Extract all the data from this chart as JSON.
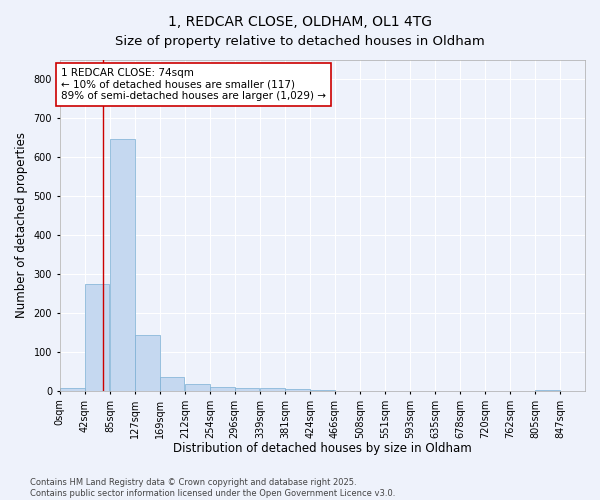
{
  "title_line1": "1, REDCAR CLOSE, OLDHAM, OL1 4TG",
  "title_line2": "Size of property relative to detached houses in Oldham",
  "xlabel": "Distribution of detached houses by size in Oldham",
  "ylabel": "Number of detached properties",
  "bar_color": "#c5d8f0",
  "bar_edge_color": "#7bafd4",
  "vline_value": 74,
  "vline_color": "#cc0000",
  "categories": [
    "0sqm",
    "42sqm",
    "85sqm",
    "127sqm",
    "169sqm",
    "212sqm",
    "254sqm",
    "296sqm",
    "339sqm",
    "381sqm",
    "424sqm",
    "466sqm",
    "508sqm",
    "551sqm",
    "593sqm",
    "635sqm",
    "678sqm",
    "720sqm",
    "762sqm",
    "805sqm",
    "847sqm"
  ],
  "bin_edges": [
    0,
    42,
    85,
    127,
    169,
    212,
    254,
    296,
    339,
    381,
    424,
    466,
    508,
    551,
    593,
    635,
    678,
    720,
    762,
    805,
    847,
    889
  ],
  "values": [
    7,
    275,
    648,
    143,
    35,
    18,
    11,
    7,
    8,
    4,
    3,
    0,
    0,
    0,
    0,
    0,
    0,
    0,
    0,
    3,
    0
  ],
  "ylim": [
    0,
    850
  ],
  "yticks": [
    0,
    100,
    200,
    300,
    400,
    500,
    600,
    700,
    800
  ],
  "annotation_text": "1 REDCAR CLOSE: 74sqm\n← 10% of detached houses are smaller (117)\n89% of semi-detached houses are larger (1,029) →",
  "annotation_box_color": "#ffffff",
  "annotation_box_edge": "#cc0000",
  "footer_text": "Contains HM Land Registry data © Crown copyright and database right 2025.\nContains public sector information licensed under the Open Government Licence v3.0.",
  "background_color": "#eef2fb",
  "grid_color": "#ffffff",
  "title_fontsize": 10,
  "subtitle_fontsize": 9.5,
  "axis_label_fontsize": 8.5,
  "tick_fontsize": 7,
  "annotation_fontsize": 7.5,
  "footer_fontsize": 6
}
